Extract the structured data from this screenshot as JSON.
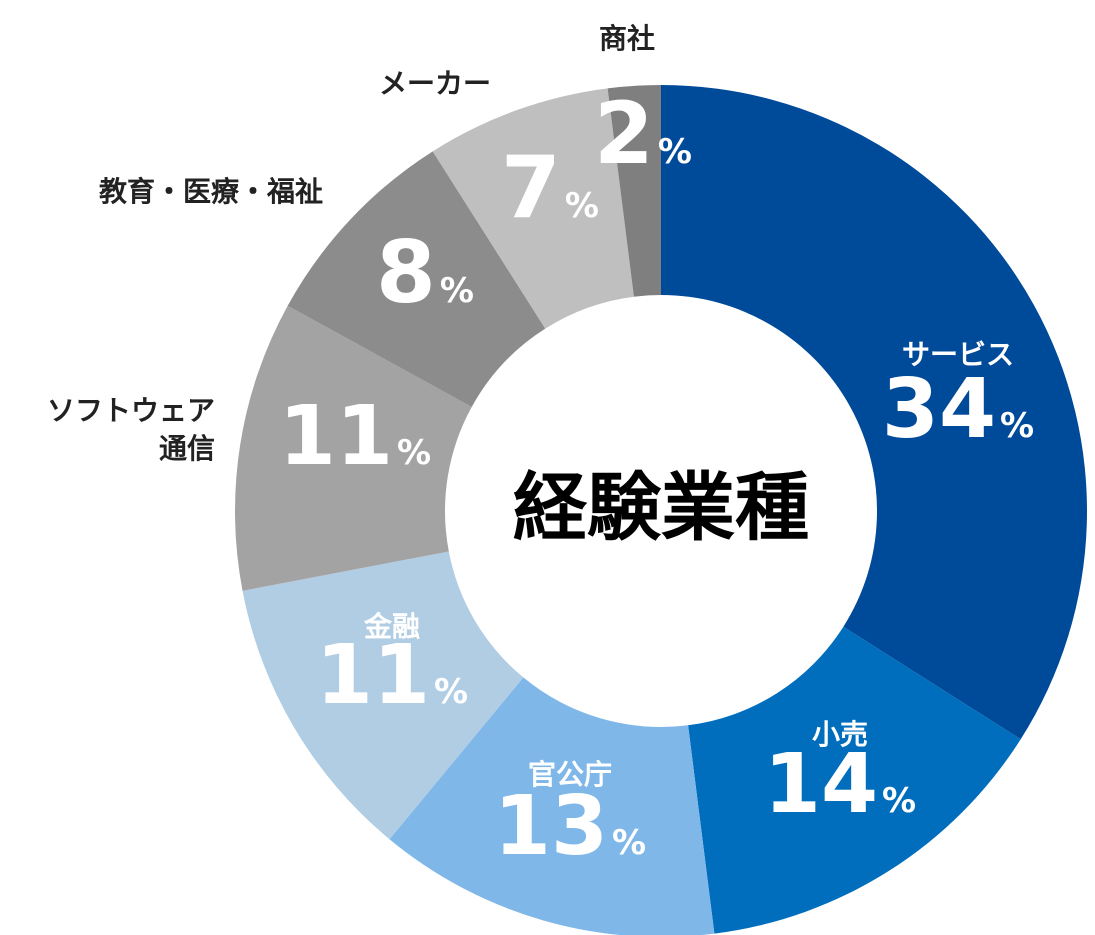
{
  "chart_data": {
    "type": "pie",
    "title": "経験業種",
    "slices": [
      {
        "label": "サービス",
        "label_lines": [
          "サービス"
        ],
        "value": 34,
        "color": "#004a9a",
        "label_position": "inside"
      },
      {
        "label": "小売",
        "label_lines": [
          "小売"
        ],
        "value": 14,
        "color": "#006ebd",
        "label_position": "inside"
      },
      {
        "label": "官公庁",
        "label_lines": [
          "官公庁"
        ],
        "value": 13,
        "color": "#7fb8e8",
        "label_position": "inside"
      },
      {
        "label": "金融",
        "label_lines": [
          "金融"
        ],
        "value": 11,
        "color": "#b1cde4",
        "label_position": "inside"
      },
      {
        "label": "ソフトウェア通信",
        "label_lines": [
          "ソフトウェア",
          "通信"
        ],
        "value": 11,
        "color": "#a3a3a3",
        "label_position": "outside"
      },
      {
        "label": "教育・医療・福祉",
        "label_lines": [
          "教育・医療・福祉"
        ],
        "value": 8,
        "color": "#8c8c8c",
        "label_position": "outside"
      },
      {
        "label": "メーカー",
        "label_lines": [
          "メーカー"
        ],
        "value": 7,
        "color": "#bfbfbf",
        "label_position": "outside"
      },
      {
        "label": "商社",
        "label_lines": [
          "商社"
        ],
        "value": 2,
        "color": "#7f7f7f",
        "label_position": "outside"
      }
    ],
    "percent_sign": "%"
  }
}
